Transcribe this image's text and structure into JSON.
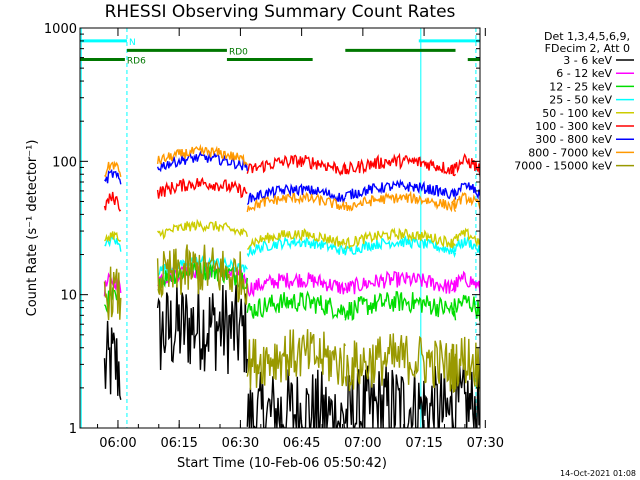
{
  "chart_data": {
    "type": "line",
    "title": "RHESSI Observing Summary Count Rates",
    "xlabel": "Start Time (10-Feb-06 05:50:42)",
    "ylabel": "Count Rate (s⁻¹ detector⁻¹)",
    "ylog": true,
    "ylim": [
      1,
      1000
    ],
    "xlim_minutes": [
      0,
      98
    ],
    "x_ticks": [
      {
        "label": "06:00",
        "min": 9.3
      },
      {
        "label": "06:15",
        "min": 24.3
      },
      {
        "label": "06:30",
        "min": 39.3
      },
      {
        "label": "06:45",
        "min": 54.3
      },
      {
        "label": "07:00",
        "min": 69.3
      },
      {
        "label": "07:15",
        "min": 84.3
      },
      {
        "label": "07:30",
        "min": 99.3
      }
    ],
    "y_ticks": [
      {
        "label": "1",
        "value": 1
      },
      {
        "label": "10",
        "value": 10
      },
      {
        "label": "100",
        "value": 100
      },
      {
        "label": "1000",
        "value": 1000
      }
    ],
    "legend_header": [
      "Det 1,3,4,5,6,9,",
      "FDecim 2, Att 0"
    ],
    "legend_placement": "right",
    "series": [
      {
        "name": "3 - 6 keV",
        "color": "#000000",
        "levels": [
          2.6,
          1.2,
          5.0,
          1.1
        ],
        "noise": 0.35
      },
      {
        "name": "6 - 12 keV",
        "color": "#ff00ff",
        "levels": [
          11,
          11,
          13,
          11
        ],
        "noise": 0.06
      },
      {
        "name": "12 - 25 keV",
        "color": "#00dd00",
        "levels": [
          8,
          7.5,
          13,
          7.5
        ],
        "noise": 0.08
      },
      {
        "name": "25 - 50 keV",
        "color": "#00ffff",
        "levels": [
          22,
          21,
          15,
          21
        ],
        "noise": 0.04
      },
      {
        "name": "50 - 100 keV",
        "color": "#cccc00",
        "levels": [
          24,
          24,
          28,
          24
        ],
        "noise": 0.04
      },
      {
        "name": "100 - 300 keV",
        "color": "#ff0000",
        "levels": [
          45,
          85,
          58,
          85
        ],
        "noise": 0.05
      },
      {
        "name": "300 - 800 keV",
        "color": "#0000ff",
        "levels": [
          68,
          55,
          90,
          52
        ],
        "noise": 0.04
      },
      {
        "name": "800 - 7000 keV",
        "color": "#ff9900",
        "levels": [
          80,
          45,
          100,
          45
        ],
        "noise": 0.04
      },
      {
        "name": "7000 - 15000 keV",
        "color": "#999900",
        "levels": [
          9,
          2.8,
          13,
          3
        ],
        "noise": 0.2
      }
    ],
    "segments_minutes": [
      [
        0,
        6,
        10
      ],
      [
        6,
        19,
        41
      ],
      [
        19,
        41,
        65
      ],
      [
        41,
        65,
        92
      ],
      [
        65,
        91,
        98
      ]
    ],
    "annotations": [
      {
        "text": "N",
        "color": "#00ffff",
        "bars": [
          [
            0,
            11.5
          ],
          [
            83,
            98
          ]
        ],
        "level": 800
      },
      {
        "text": "RD0",
        "color": "#007700",
        "bars": [
          [
            11.5,
            36
          ],
          [
            65,
            92
          ]
        ],
        "level": 680
      },
      {
        "text": "RD6",
        "color": "#007700",
        "bars": [
          [
            0,
            11
          ],
          [
            36,
            57
          ],
          [
            95,
            98
          ]
        ],
        "level": 580
      }
    ],
    "vertical_markers_minutes": [
      {
        "min": 0.3,
        "style": "solid"
      },
      {
        "min": 11.5,
        "style": "dashed"
      },
      {
        "min": 83.5,
        "style": "solid"
      },
      {
        "min": 97,
        "style": "dashed"
      }
    ],
    "footer": "14-Oct-2021 01:08"
  }
}
